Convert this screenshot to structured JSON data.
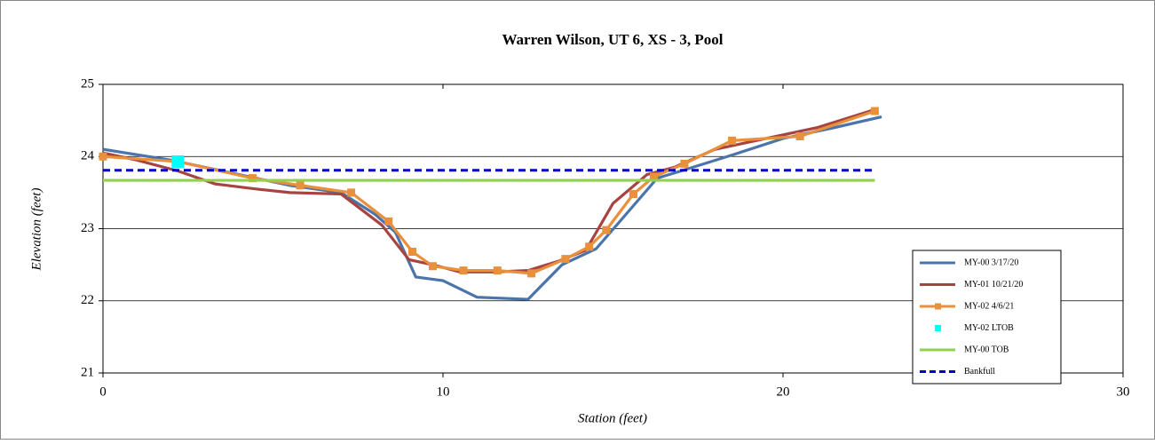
{
  "chart_data": {
    "type": "line",
    "title": "Warren Wilson, UT 6, XS - 3, Pool",
    "x_label": "Station (feet)",
    "y_label": "Elevation (feet)",
    "xlim": [
      0,
      30
    ],
    "xticks": [
      0,
      10,
      20,
      30
    ],
    "ylim": [
      21,
      25
    ],
    "yticks": [
      21,
      22,
      23,
      24,
      25
    ],
    "grid": true,
    "legend": "lower right",
    "series": [
      {
        "name": "MY-00 3/17/20",
        "color": "#4a74aa",
        "marker": "none",
        "dash": false,
        "x": [
          0,
          2,
          4,
          5.5,
          7,
          8,
          8.6,
          9.2,
          10,
          11,
          12.5,
          13.5,
          14.5,
          15.2,
          16.3,
          17,
          18.5,
          20,
          21.5,
          22.9
        ],
        "values": [
          24.1,
          23.95,
          23.75,
          23.6,
          23.5,
          23.2,
          22.95,
          22.33,
          22.28,
          22.05,
          22.02,
          22.5,
          22.72,
          23.1,
          23.7,
          23.8,
          24.02,
          24.25,
          24.4,
          24.55
        ]
      },
      {
        "name": "MY-01 10/21/20",
        "color": "#a84440",
        "marker": "none",
        "dash": false,
        "x": [
          0,
          1,
          2.2,
          3.3,
          4.5,
          5.5,
          7,
          8.2,
          9,
          9.7,
          10.5,
          11.5,
          12.5,
          13.4,
          14.2,
          15,
          16,
          16.8,
          18,
          19.5,
          21,
          22.7
        ],
        "values": [
          24.05,
          23.95,
          23.8,
          23.62,
          23.55,
          23.5,
          23.48,
          23.05,
          22.57,
          22.5,
          22.4,
          22.4,
          22.42,
          22.55,
          22.7,
          23.35,
          23.75,
          23.85,
          24.1,
          24.25,
          24.4,
          24.65
        ]
      },
      {
        "name": "MY-02 4/6/21",
        "color": "#e8903c",
        "marker": "square",
        "dash": false,
        "x": [
          0,
          2.2,
          4.4,
          5.8,
          7.3,
          8.4,
          9.1,
          9.7,
          10.6,
          11.6,
          12.6,
          13.6,
          14.3,
          14.8,
          15.6,
          16.2,
          17.1,
          18.5,
          20.5,
          22.7
        ],
        "values": [
          24.0,
          23.93,
          23.7,
          23.6,
          23.5,
          23.1,
          22.68,
          22.48,
          22.42,
          22.42,
          22.38,
          22.58,
          22.75,
          22.98,
          23.48,
          23.72,
          23.9,
          24.22,
          24.28,
          24.63
        ]
      },
      {
        "name": "MY-02 LTOB",
        "color": "#00ffff",
        "marker": "bigsquare",
        "dash": false,
        "line": false,
        "x": [
          2.2
        ],
        "values": [
          23.93
        ]
      },
      {
        "name": "MY-00 TOB",
        "color": "#92d050",
        "marker": "none",
        "dash": false,
        "x": [
          0,
          22.7
        ],
        "values": [
          23.67,
          23.67
        ]
      },
      {
        "name": "Bankfull",
        "color": "#0000cc",
        "marker": "none",
        "dash": true,
        "x": [
          0,
          22.7
        ],
        "values": [
          23.81,
          23.81
        ]
      }
    ]
  }
}
